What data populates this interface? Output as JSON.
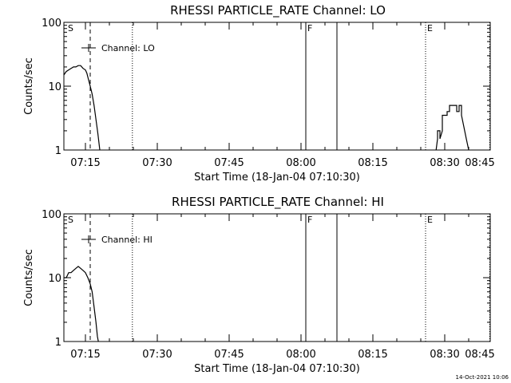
{
  "footer_timestamp": "14-Oct-2021 10:06",
  "chart_data": [
    {
      "type": "line",
      "title": "RHESSI PARTICLE_RATE Channel: LO",
      "xlabel": "Start Time (18-Jan-04 07:10:30)",
      "ylabel": "Counts/sec",
      "x_unit": "minutes after 07:00 UT",
      "xlim": [
        10.5,
        99.5
      ],
      "ylim": [
        1,
        100
      ],
      "yscale": "log",
      "x_ticks": [
        {
          "x": 15,
          "label": "07:15"
        },
        {
          "x": 30,
          "label": "07:30"
        },
        {
          "x": 45,
          "label": "07:45"
        },
        {
          "x": 60,
          "label": "08:00"
        },
        {
          "x": 75,
          "label": "08:15"
        },
        {
          "x": 90,
          "label": "08:30"
        },
        {
          "x": 105,
          "label": "08:45"
        }
      ],
      "y_ticks": [
        {
          "y": 1,
          "label": "1"
        },
        {
          "y": 10,
          "label": "10"
        },
        {
          "y": 100,
          "label": "100"
        }
      ],
      "legend": {
        "label": "Channel: LO",
        "position": "top-left"
      },
      "markers": [
        {
          "x": 11.0,
          "label": "S",
          "style": "none"
        },
        {
          "x": 16.0,
          "label": "",
          "style": "dashed"
        },
        {
          "x": 24.8,
          "label": "",
          "style": "dotted"
        },
        {
          "x": 61.0,
          "label": "F",
          "style": "solid"
        },
        {
          "x": 67.5,
          "label": "",
          "style": "solid"
        },
        {
          "x": 86.0,
          "label": "E",
          "style": "dotted"
        },
        {
          "x": 99.4,
          "label": "",
          "style": "dotted"
        }
      ],
      "series": [
        {
          "name": "Channel: LO",
          "segments": [
            [
              [
                10.5,
                15
              ],
              [
                11.0,
                17
              ],
              [
                11.5,
                18
              ],
              [
                12.0,
                19
              ],
              [
                12.5,
                20
              ],
              [
                13.0,
                20
              ],
              [
                13.5,
                21
              ],
              [
                14.0,
                21
              ],
              [
                14.5,
                19
              ],
              [
                15.0,
                18
              ],
              [
                15.3,
                16
              ],
              [
                15.6,
                13
              ],
              [
                16.0,
                10
              ],
              [
                16.4,
                7.5
              ],
              [
                16.8,
                5
              ],
              [
                17.2,
                3
              ],
              [
                17.6,
                1.8
              ],
              [
                18.0,
                1
              ]
            ],
            [
              [
                88.2,
                1
              ],
              [
                88.5,
                1.5
              ],
              [
                88.5,
                2
              ],
              [
                89.0,
                2
              ],
              [
                89.0,
                1.5
              ],
              [
                89.5,
                2
              ],
              [
                89.5,
                3.5
              ],
              [
                90.5,
                3.5
              ],
              [
                90.5,
                4
              ],
              [
                91.0,
                4
              ],
              [
                91.0,
                5
              ],
              [
                92.5,
                5
              ],
              [
                92.5,
                4
              ],
              [
                93.0,
                4
              ],
              [
                93.0,
                5
              ],
              [
                93.5,
                5
              ],
              [
                93.5,
                3.5
              ],
              [
                94.0,
                2.3
              ],
              [
                94.5,
                1.5
              ],
              [
                95.0,
                1
              ]
            ]
          ]
        }
      ]
    },
    {
      "type": "line",
      "title": "RHESSI PARTICLE_RATE Channel: HI",
      "xlabel": "Start Time (18-Jan-04 07:10:30)",
      "ylabel": "Counts/sec",
      "x_unit": "minutes after 07:00 UT",
      "xlim": [
        10.5,
        99.5
      ],
      "ylim": [
        1,
        100
      ],
      "yscale": "log",
      "x_ticks": [
        {
          "x": 15,
          "label": "07:15"
        },
        {
          "x": 30,
          "label": "07:30"
        },
        {
          "x": 45,
          "label": "07:45"
        },
        {
          "x": 60,
          "label": "08:00"
        },
        {
          "x": 75,
          "label": "08:15"
        },
        {
          "x": 90,
          "label": "08:30"
        },
        {
          "x": 105,
          "label": "08:45"
        }
      ],
      "y_ticks": [
        {
          "y": 1,
          "label": "1"
        },
        {
          "y": 10,
          "label": "10"
        },
        {
          "y": 100,
          "label": "100"
        }
      ],
      "legend": {
        "label": "Channel: HI",
        "position": "top-left"
      },
      "markers": [
        {
          "x": 11.0,
          "label": "S",
          "style": "none"
        },
        {
          "x": 16.0,
          "label": "",
          "style": "dashed"
        },
        {
          "x": 24.8,
          "label": "",
          "style": "dotted"
        },
        {
          "x": 61.0,
          "label": "F",
          "style": "solid"
        },
        {
          "x": 67.5,
          "label": "",
          "style": "solid"
        },
        {
          "x": 86.0,
          "label": "E",
          "style": "dotted"
        },
        {
          "x": 99.4,
          "label": "",
          "style": "dotted"
        }
      ],
      "series": [
        {
          "name": "Channel: HI",
          "segments": [
            [
              [
                10.5,
                10
              ],
              [
                11.0,
                10
              ],
              [
                11.5,
                12
              ],
              [
                12.0,
                12
              ],
              [
                12.5,
                13
              ],
              [
                13.0,
                14
              ],
              [
                13.5,
                15
              ],
              [
                14.0,
                14
              ],
              [
                14.5,
                13
              ],
              [
                15.0,
                12
              ],
              [
                15.5,
                10
              ],
              [
                16.0,
                8
              ],
              [
                16.4,
                6
              ],
              [
                16.8,
                3.5
              ],
              [
                17.2,
                2
              ],
              [
                17.5,
                1.2
              ],
              [
                17.7,
                1
              ]
            ]
          ]
        }
      ]
    }
  ]
}
